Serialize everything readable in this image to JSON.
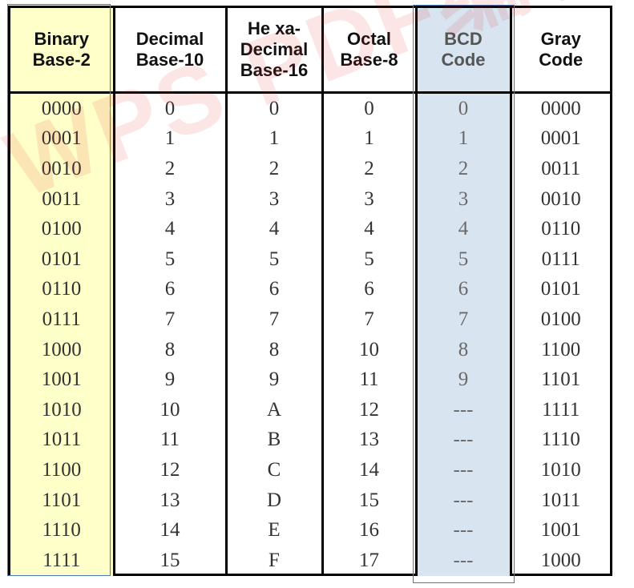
{
  "table": {
    "headers": [
      {
        "line1": "Binary",
        "line2": "Base-2",
        "line3": ""
      },
      {
        "line1": "Decimal",
        "line2": "Base-10",
        "line3": ""
      },
      {
        "line1": "He xa-",
        "line2": "Decimal",
        "line3": "Base-16"
      },
      {
        "line1": "Octal",
        "line2": "Base-8",
        "line3": ""
      },
      {
        "line1": "BCD",
        "line2": "Code",
        "line3": ""
      },
      {
        "line1": "Gray",
        "line2": "Code",
        "line3": ""
      }
    ],
    "rows": [
      [
        "0000",
        "0",
        "0",
        "0",
        "0",
        "0000"
      ],
      [
        "0001",
        "1",
        "1",
        "1",
        "1",
        "0001"
      ],
      [
        "0010",
        "2",
        "2",
        "2",
        "2",
        "0011"
      ],
      [
        "0011",
        "3",
        "3",
        "3",
        "3",
        "0010"
      ],
      [
        "0100",
        "4",
        "4",
        "4",
        "4",
        "0110"
      ],
      [
        "0101",
        "5",
        "5",
        "5",
        "5",
        "0111"
      ],
      [
        "0110",
        "6",
        "6",
        "6",
        "6",
        "0101"
      ],
      [
        "0111",
        "7",
        "7",
        "7",
        "7",
        "0100"
      ],
      [
        "1000",
        "8",
        "8",
        "10",
        "8",
        "1100"
      ],
      [
        "1001",
        "9",
        "9",
        "11",
        "9",
        "1101"
      ],
      [
        "1010",
        "10",
        "A",
        "12",
        "---",
        "1111"
      ],
      [
        "1011",
        "11",
        "B",
        "13",
        "---",
        "1110"
      ],
      [
        "1100",
        "12",
        "C",
        "14",
        "---",
        "1010"
      ],
      [
        "1101",
        "13",
        "D",
        "15",
        "---",
        "1011"
      ],
      [
        "1110",
        "14",
        "E",
        "16",
        "---",
        "1001"
      ],
      [
        "1111",
        "15",
        "F",
        "17",
        "---",
        "1000"
      ]
    ]
  },
  "colors": {
    "binary_highlight": "#ffffc9",
    "bcd_highlight": "#d9e4f1",
    "frame": "#4d7ab7"
  },
  "watermark": {
    "text": "WPS PDF编辑"
  }
}
